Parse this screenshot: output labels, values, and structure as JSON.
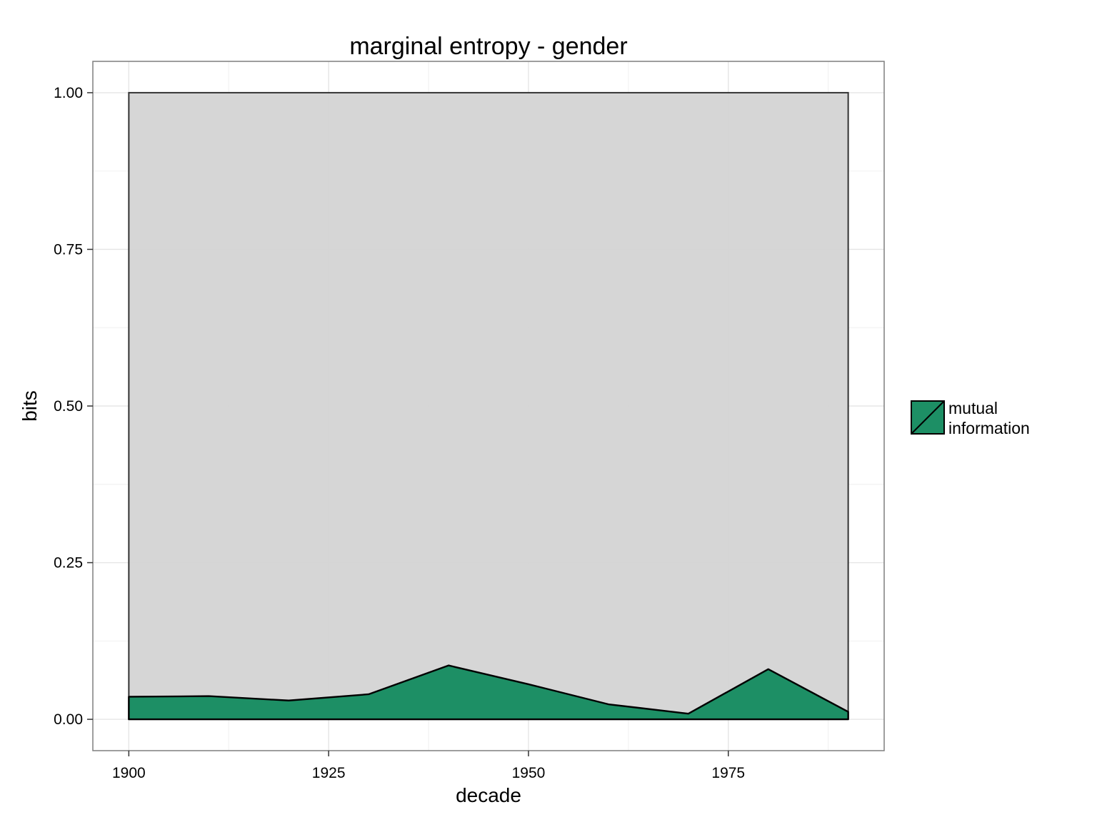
{
  "chart_data": {
    "type": "area",
    "title": "marginal entropy - gender",
    "xlabel": "decade",
    "ylabel": "bits",
    "xlim": [
      1895.5,
      1994.5
    ],
    "ylim": [
      -0.05,
      1.05
    ],
    "x_ticks": [
      1900,
      1925,
      1950,
      1975
    ],
    "x_tick_labels": [
      "1900",
      "1925",
      "1950",
      "1975"
    ],
    "y_ticks": [
      0,
      0.25,
      0.5,
      0.75,
      1.0
    ],
    "y_tick_labels": [
      "0.00",
      "0.25",
      "0.50",
      "0.75",
      "1.00"
    ],
    "grid": true,
    "marginal_entropy": {
      "x": [
        1900,
        1990
      ],
      "y": [
        1.0,
        1.0
      ],
      "fill": "#d4d4d4"
    },
    "series": [
      {
        "name": "mutual information",
        "x": [
          1900,
          1910,
          1920,
          1930,
          1940,
          1950,
          1960,
          1970,
          1980,
          1990
        ],
        "y": [
          0.036,
          0.037,
          0.03,
          0.04,
          0.086,
          0.056,
          0.024,
          0.009,
          0.08,
          0.012
        ],
        "color": "#1d8f65"
      }
    ],
    "legend": {
      "position": "right",
      "label_lines": [
        "mutual",
        "information"
      ]
    }
  }
}
